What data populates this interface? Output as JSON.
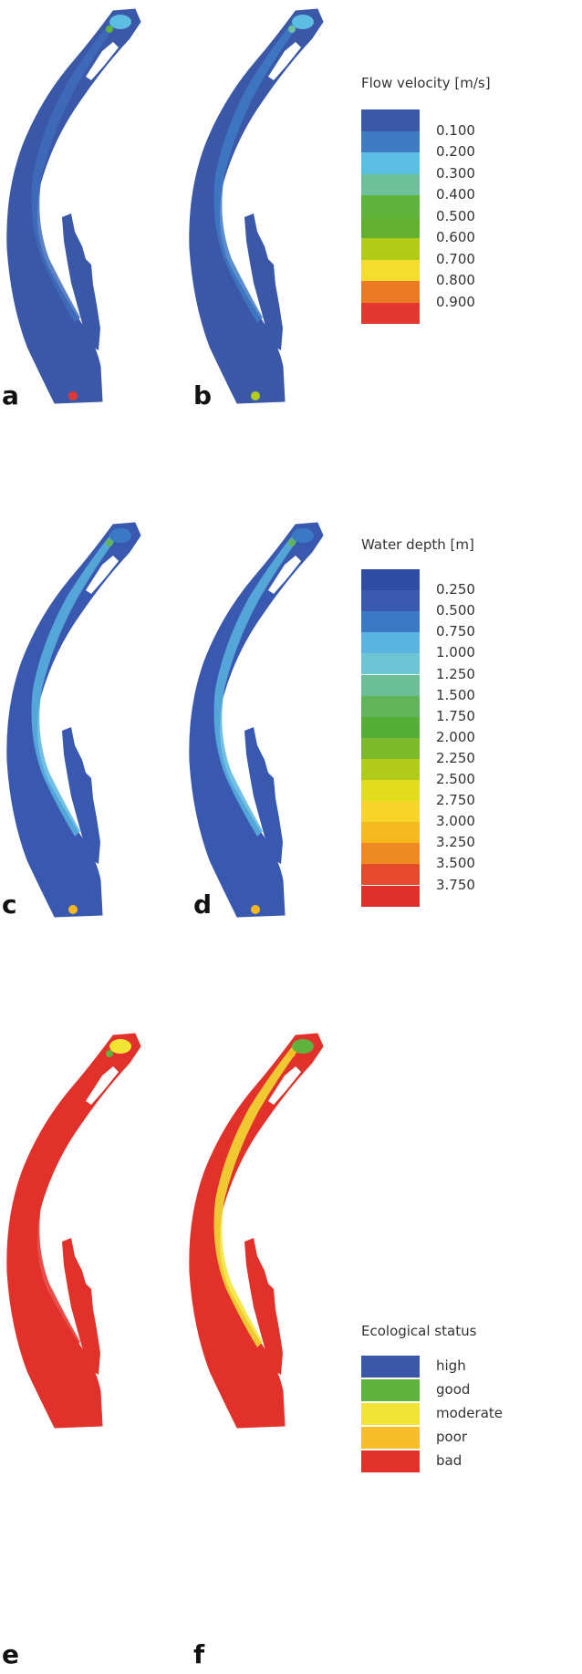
{
  "panels": {
    "a": "a",
    "b": "b",
    "c": "c",
    "d": "d",
    "e": "e",
    "f": "f"
  },
  "legends": {
    "velocity": {
      "title": "Flow velocity [m/s]",
      "items": [
        {
          "label": "0.100",
          "color": "#3a57a8"
        },
        {
          "label": "0.200",
          "color": "#3f7ac4"
        },
        {
          "label": "0.300",
          "color": "#5cbde3"
        },
        {
          "label": "0.400",
          "color": "#6cc09a"
        },
        {
          "label": "0.500",
          "color": "#5fb23c"
        },
        {
          "label": "0.600",
          "color": "#63b132"
        },
        {
          "label": "0.700",
          "color": "#b3cc15"
        },
        {
          "label": "0.800",
          "color": "#f6dc2c"
        },
        {
          "label": "0.900",
          "color": "#ea7a24"
        },
        {
          "label": "",
          "color": "#e33831"
        }
      ]
    },
    "depth": {
      "title": "Water depth [m]",
      "items": [
        {
          "label": "0.250",
          "color": "#2f4da3"
        },
        {
          "label": "0.500",
          "color": "#3958b0"
        },
        {
          "label": "0.750",
          "color": "#3c79c4"
        },
        {
          "label": "1.000",
          "color": "#59b4e1"
        },
        {
          "label": "1.250",
          "color": "#6cc4d4"
        },
        {
          "label": "1.500",
          "color": "#6bbf96"
        },
        {
          "label": "1.750",
          "color": "#62b45a"
        },
        {
          "label": "2.000",
          "color": "#55af36"
        },
        {
          "label": "2.250",
          "color": "#7cba2c"
        },
        {
          "label": "2.500",
          "color": "#b0cb18"
        },
        {
          "label": "2.750",
          "color": "#e1dd1c"
        },
        {
          "label": "3.000",
          "color": "#f9d52c"
        },
        {
          "label": "3.250",
          "color": "#f6b91d"
        },
        {
          "label": "3.500",
          "color": "#ed8a22"
        },
        {
          "label": "3.750",
          "color": "#e54b2a"
        },
        {
          "label": "",
          "color": "#e1302c"
        }
      ]
    },
    "ecology": {
      "title": "Ecological status",
      "items": [
        {
          "label": "high",
          "color": "#3a57a8"
        },
        {
          "label": "good",
          "color": "#5fb23c"
        },
        {
          "label": "moderate",
          "color": "#f2e434"
        },
        {
          "label": "poor",
          "color": "#f7be2a"
        },
        {
          "label": "bad",
          "color": "#e2302a"
        }
      ]
    }
  },
  "maps": {
    "a": {
      "base": "#3a57a8",
      "main": "#3f6cbc",
      "accent": "#5cbde3",
      "spot": "#5fb23c",
      "hot": "#e33831"
    },
    "b": {
      "base": "#3a57a8",
      "main": "#3f7ac4",
      "accent": "#5cbde3",
      "spot": "#6cc09a",
      "hot": "#b3cc15"
    },
    "c": {
      "base": "#3958b0",
      "main": "#59b4e1",
      "accent": "#3c79c4",
      "spot": "#62b45a",
      "hot": "#f6b91d"
    },
    "d": {
      "base": "#3958b0",
      "main": "#59b4e1",
      "accent": "#3c79c4",
      "spot": "#62b45a",
      "hot": "#f6b91d"
    },
    "e": {
      "base": "#e2302a",
      "main": "#e2302a",
      "accent": "#f2e434",
      "spot": "#5fb23c",
      "hot": "#e2302a"
    },
    "f": {
      "base": "#e2302a",
      "main": "#f2e434",
      "accent": "#5fb23c",
      "spot": "#f7be2a",
      "hot": "#e2302a"
    }
  }
}
